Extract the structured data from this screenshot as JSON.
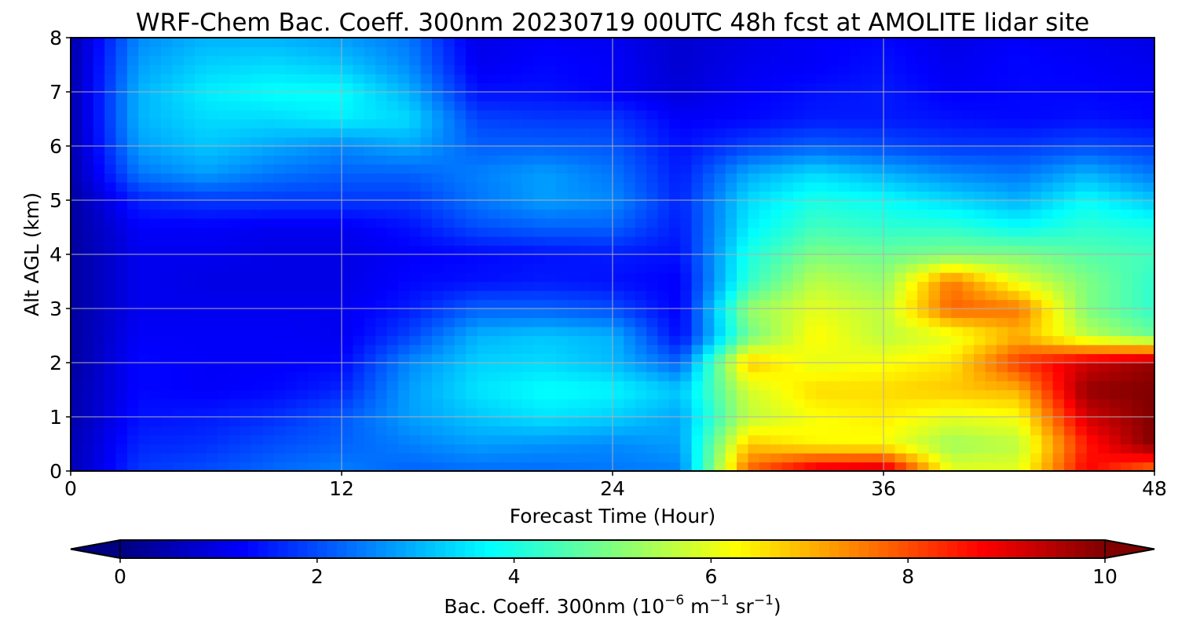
{
  "chart_data": {
    "type": "heatmap",
    "title": "WRF-Chem Bac. Coeff. 300nm  20230719 00UTC 48h fcst at AMOLITE lidar site",
    "xlabel": "Forecast Time (Hour)",
    "ylabel": "Alt AGL (km)",
    "xlim": [
      0,
      48
    ],
    "ylim": [
      0,
      8
    ],
    "xticks": [
      0,
      12,
      24,
      36,
      48
    ],
    "xtick_labels": [
      "0",
      "12",
      "24",
      "36",
      "48"
    ],
    "yticks": [
      0,
      1,
      2,
      3,
      4,
      5,
      6,
      7,
      8
    ],
    "ytick_labels": [
      "0",
      "1",
      "2",
      "3",
      "4",
      "5",
      "6",
      "7",
      "8"
    ],
    "grid": true,
    "colormap": "jet",
    "colorbar": {
      "orientation": "horizontal",
      "placement": "bottom",
      "extend": "both",
      "range": [
        0,
        10
      ],
      "ticks": [
        0,
        2,
        4,
        6,
        8,
        10
      ],
      "tick_labels": [
        "0",
        "2",
        "4",
        "6",
        "8",
        "10"
      ],
      "label_main": "Bac. Coeff. 300nm  (10",
      "label_exp1": "−6",
      "label_mid": " m",
      "label_exp2": "−1",
      "label_mid2": " sr",
      "label_exp3": "−1",
      "label_end": ")"
    },
    "x": [
      0,
      3,
      6,
      9,
      12,
      15,
      18,
      21,
      24,
      27,
      30,
      33,
      36,
      39,
      42,
      45,
      48
    ],
    "y": [
      0,
      0.5,
      1,
      1.5,
      2,
      2.5,
      3,
      3.5,
      4,
      4.5,
      5,
      5.5,
      6,
      6.5,
      7,
      7.5,
      8
    ],
    "z": [
      [
        0.5,
        1.8,
        2.0,
        2.3,
        2.5,
        2.2,
        2.3,
        2.3,
        2.4,
        2.5,
        7.8,
        9.2,
        9.4,
        6.0,
        6.0,
        8.8,
        7.5
      ],
      [
        0.5,
        1.6,
        1.7,
        2.0,
        2.2,
        2.5,
        2.8,
        2.7,
        2.6,
        2.8,
        6.8,
        6.3,
        6.2,
        5.3,
        5.6,
        8.5,
        10.0
      ],
      [
        0.4,
        1.4,
        1.5,
        1.7,
        2.1,
        2.8,
        3.2,
        3.5,
        3.3,
        2.9,
        5.6,
        6.2,
        6.4,
        6.0,
        6.2,
        9.2,
        10.0
      ],
      [
        0.4,
        1.3,
        1.2,
        1.3,
        1.6,
        2.8,
        3.5,
        3.8,
        3.7,
        3.2,
        5.8,
        6.6,
        6.6,
        6.8,
        7.0,
        9.8,
        10.0
      ],
      [
        0.3,
        1.3,
        1.2,
        1.2,
        1.3,
        2.6,
        3.3,
        3.4,
        3.1,
        2.2,
        6.8,
        6.0,
        6.2,
        6.5,
        8.2,
        9.2,
        9.8
      ],
      [
        0.3,
        1.2,
        1.2,
        1.2,
        1.1,
        1.9,
        3.0,
        3.2,
        3.0,
        1.3,
        4.8,
        6.3,
        5.6,
        6.0,
        7.0,
        5.6,
        4.8
      ],
      [
        0.3,
        1.1,
        1.1,
        1.1,
        1.1,
        1.5,
        2.2,
        2.2,
        2.0,
        1.2,
        5.2,
        6.0,
        5.6,
        7.8,
        7.6,
        5.0,
        4.2
      ],
      [
        0.3,
        1.1,
        1.0,
        1.0,
        1.0,
        1.3,
        1.4,
        1.5,
        1.4,
        1.2,
        4.2,
        5.6,
        5.2,
        7.6,
        6.0,
        5.0,
        4.2
      ],
      [
        0.3,
        1.1,
        1.1,
        1.0,
        1.0,
        1.2,
        1.3,
        1.4,
        1.5,
        1.4,
        4.0,
        5.0,
        4.8,
        5.0,
        5.0,
        4.6,
        4.4
      ],
      [
        0.3,
        1.2,
        1.2,
        1.1,
        1.1,
        1.4,
        2.0,
        2.2,
        2.2,
        1.5,
        3.6,
        4.4,
        4.2,
        4.2,
        3.8,
        4.2,
        4.0
      ],
      [
        0.3,
        1.6,
        1.8,
        1.8,
        1.8,
        1.8,
        2.4,
        2.8,
        2.6,
        1.6,
        3.4,
        4.0,
        3.8,
        3.4,
        3.0,
        3.8,
        3.2
      ],
      [
        0.4,
        2.4,
        2.8,
        2.4,
        2.2,
        2.2,
        2.5,
        2.8,
        2.4,
        1.5,
        2.9,
        3.4,
        3.0,
        2.6,
        2.4,
        3.0,
        2.4
      ],
      [
        0.4,
        2.8,
        3.2,
        2.9,
        2.6,
        2.9,
        2.2,
        2.2,
        2.1,
        1.4,
        1.9,
        2.2,
        2.0,
        1.8,
        1.8,
        2.0,
        1.8
      ],
      [
        0.4,
        3.0,
        3.4,
        3.4,
        3.6,
        3.4,
        1.9,
        1.8,
        1.8,
        1.2,
        1.3,
        1.5,
        1.5,
        1.4,
        1.3,
        1.4,
        1.3
      ],
      [
        0.4,
        3.0,
        3.6,
        3.8,
        3.8,
        3.0,
        1.4,
        1.4,
        1.2,
        0.9,
        1.2,
        1.4,
        1.5,
        1.2,
        1.3,
        1.3,
        1.2
      ],
      [
        0.4,
        2.8,
        3.3,
        3.4,
        3.2,
        2.6,
        1.1,
        1.3,
        1.2,
        0.8,
        1.1,
        1.2,
        1.4,
        1.1,
        1.3,
        1.2,
        1.1
      ],
      [
        0.4,
        2.6,
        3.0,
        3.0,
        2.8,
        2.4,
        1.0,
        1.2,
        1.1,
        0.8,
        1.0,
        1.2,
        1.3,
        1.0,
        1.2,
        1.1,
        1.0
      ]
    ]
  }
}
